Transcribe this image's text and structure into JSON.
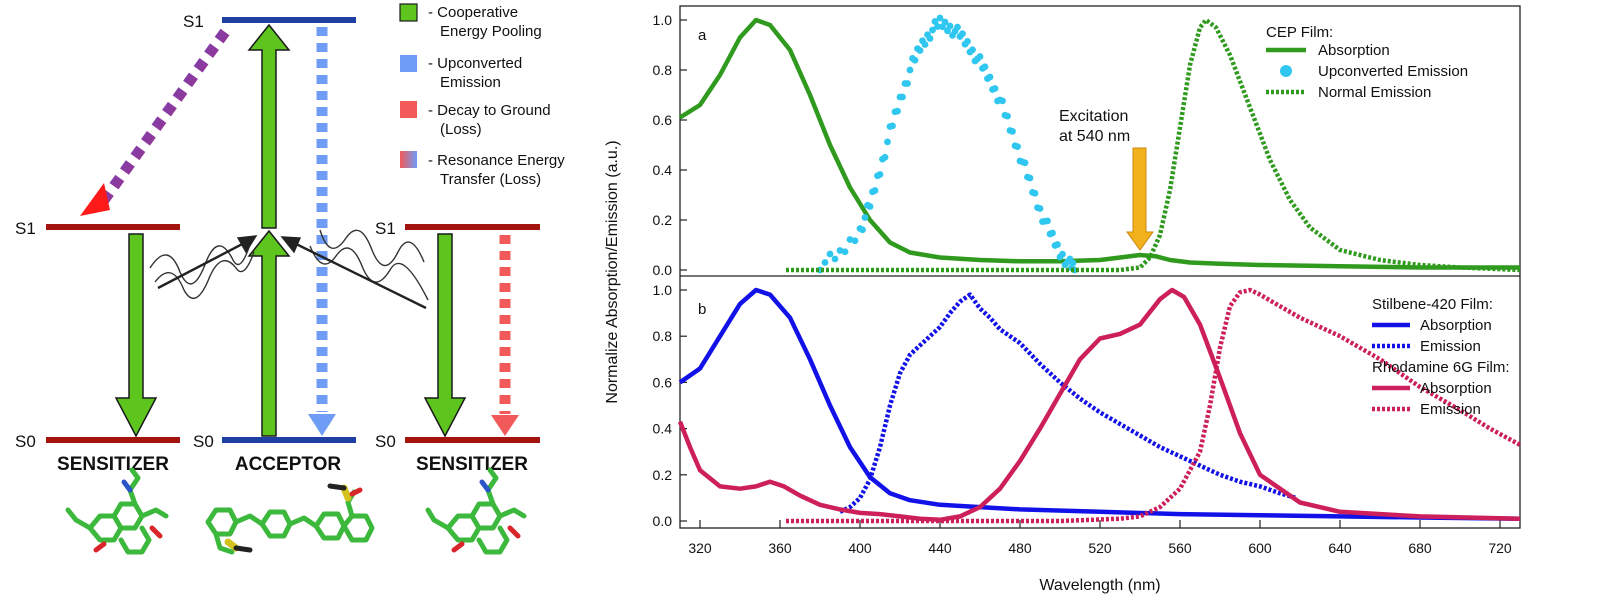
{
  "diagram": {
    "acceptor_levels": {
      "s1": "S1",
      "s0": "S0"
    },
    "left_sensitizer_levels": {
      "s1": "S1",
      "s0": "S0"
    },
    "right_sensitizer_levels": {
      "s1": "S1",
      "s0": "S0"
    },
    "left_sensitizer_label": "SENSITIZER",
    "acceptor_label": "ACCEPTOR",
    "right_sensitizer_label": "SENSITIZER",
    "colors": {
      "sensitizer_level": "#a3140f",
      "acceptor_level": "#1f3fa3",
      "pooling": "#5ec41e",
      "upconverted": "#6f9cf5",
      "decay": "#f25a5a",
      "molecule": "#3cb83c"
    },
    "legend": [
      {
        "line1": "- Cooperative",
        "line2": "Energy Pooling",
        "color": "#5ec41e"
      },
      {
        "line1": "- Upconverted",
        "line2": "Emission",
        "color": "#6f9cf5"
      },
      {
        "line1": "- Decay to Ground",
        "line2": "(Loss)",
        "color": "#f25a5a"
      },
      {
        "line1": "- Resonance Energy",
        "line2": "Transfer (Loss)",
        "color": "gradient"
      }
    ]
  },
  "chart_data": [
    {
      "type": "line",
      "panel_label": "a",
      "xlim": [
        310,
        730
      ],
      "ylim": [
        0,
        1.0
      ],
      "yticks": [
        "0.0",
        "0.2",
        "0.4",
        "0.6",
        "0.8",
        "1.0"
      ],
      "legend_title": "CEP Film:",
      "annotation": {
        "line1": "Excitation",
        "line2": "at 540 nm",
        "x": 540
      },
      "series": [
        {
          "name": "Absorption",
          "style": "solid",
          "color": "#2f9a1e",
          "x": [
            310,
            320,
            330,
            340,
            348,
            355,
            365,
            375,
            385,
            395,
            405,
            415,
            425,
            440,
            460,
            480,
            500,
            520,
            530,
            540,
            548,
            555,
            565,
            580,
            600,
            640,
            680,
            730
          ],
          "y": [
            0.61,
            0.66,
            0.78,
            0.93,
            1.0,
            0.98,
            0.88,
            0.7,
            0.5,
            0.33,
            0.2,
            0.11,
            0.07,
            0.05,
            0.04,
            0.035,
            0.035,
            0.04,
            0.05,
            0.06,
            0.055,
            0.04,
            0.03,
            0.025,
            0.02,
            0.015,
            0.01,
            0.01
          ]
        },
        {
          "name": "Upconverted Emission",
          "style": "dots",
          "color": "#2fc6ef",
          "x": [
            380,
            390,
            400,
            405,
            410,
            415,
            420,
            425,
            430,
            435,
            440,
            445,
            450,
            455,
            460,
            465,
            470,
            475,
            480,
            485,
            490,
            495,
            500,
            505,
            508
          ],
          "y": [
            0.02,
            0.06,
            0.16,
            0.26,
            0.4,
            0.55,
            0.68,
            0.8,
            0.89,
            0.95,
            0.99,
            0.97,
            0.94,
            0.89,
            0.83,
            0.76,
            0.68,
            0.57,
            0.46,
            0.35,
            0.24,
            0.15,
            0.07,
            0.02,
            0.0
          ]
        },
        {
          "name": "Normal Emission",
          "style": "dotted",
          "color": "#2f9a1e",
          "x": [
            363,
            400,
            450,
            500,
            530,
            540,
            545,
            550,
            555,
            560,
            565,
            570,
            573,
            578,
            585,
            595,
            605,
            615,
            625,
            640,
            660,
            680,
            700,
            730
          ],
          "y": [
            0.0,
            0.0,
            0.0,
            0.0,
            0.0,
            0.01,
            0.05,
            0.14,
            0.32,
            0.57,
            0.82,
            0.97,
            1.0,
            0.97,
            0.86,
            0.65,
            0.44,
            0.28,
            0.17,
            0.08,
            0.04,
            0.02,
            0.01,
            0.0
          ]
        }
      ]
    },
    {
      "type": "line",
      "panel_label": "b",
      "xlim": [
        310,
        730
      ],
      "ylim": [
        0,
        1.0
      ],
      "xticks": [
        "320",
        "360",
        "400",
        "440",
        "480",
        "520",
        "560",
        "600",
        "640",
        "680",
        "720"
      ],
      "yticks": [
        "0.0",
        "0.2",
        "0.4",
        "0.6",
        "0.8",
        "1.0"
      ],
      "xlabel": "Wavelength (nm)",
      "ylabel": "Normalize Absorption/Emission (a.u.)",
      "legend_groups": [
        {
          "title": "Stilbene-420 Film:",
          "entries": [
            {
              "name": "Absorption",
              "style": "solid"
            },
            {
              "name": "Emission",
              "style": "dotted"
            }
          ],
          "color": "#1212e8"
        },
        {
          "title": "Rhodamine 6G Film:",
          "entries": [
            {
              "name": "Absorption",
              "style": "solid"
            },
            {
              "name": "Emission",
              "style": "dotted"
            }
          ],
          "color": "#cc1f5b"
        }
      ],
      "series": [
        {
          "name": "Stilbene-420 Absorption",
          "style": "solid",
          "color": "#1212e8",
          "x": [
            310,
            320,
            330,
            340,
            348,
            355,
            365,
            375,
            385,
            395,
            405,
            415,
            425,
            440,
            460,
            480,
            520,
            560,
            600,
            640,
            680,
            730
          ],
          "y": [
            0.6,
            0.66,
            0.8,
            0.94,
            1.0,
            0.98,
            0.88,
            0.7,
            0.5,
            0.32,
            0.19,
            0.12,
            0.09,
            0.07,
            0.06,
            0.05,
            0.04,
            0.03,
            0.025,
            0.02,
            0.015,
            0.01
          ]
        },
        {
          "name": "Stilbene-420 Emission",
          "style": "dotted",
          "color": "#1212e8",
          "x": [
            390,
            395,
            400,
            405,
            410,
            415,
            420,
            425,
            430,
            435,
            440,
            445,
            450,
            455,
            460,
            465,
            470,
            480,
            490,
            500,
            510,
            520,
            530,
            540,
            550,
            560,
            570,
            580,
            590,
            600,
            610,
            618
          ],
          "y": [
            0.04,
            0.06,
            0.1,
            0.18,
            0.32,
            0.5,
            0.64,
            0.72,
            0.76,
            0.8,
            0.84,
            0.9,
            0.95,
            0.98,
            0.92,
            0.88,
            0.83,
            0.77,
            0.68,
            0.6,
            0.53,
            0.47,
            0.42,
            0.37,
            0.32,
            0.28,
            0.24,
            0.2,
            0.17,
            0.15,
            0.12,
            0.1
          ]
        },
        {
          "name": "Rhodamine 6G Absorption",
          "style": "solid",
          "color": "#cc1f5b",
          "x": [
            310,
            315,
            320,
            330,
            340,
            348,
            355,
            362,
            370,
            380,
            390,
            400,
            410,
            420,
            430,
            440,
            450,
            460,
            470,
            480,
            490,
            500,
            510,
            520,
            530,
            540,
            550,
            556,
            562,
            570,
            580,
            590,
            600,
            620,
            640,
            680,
            730
          ],
          "y": [
            0.43,
            0.32,
            0.22,
            0.15,
            0.14,
            0.15,
            0.17,
            0.15,
            0.11,
            0.07,
            0.05,
            0.035,
            0.03,
            0.02,
            0.01,
            0.005,
            0.02,
            0.06,
            0.14,
            0.26,
            0.4,
            0.55,
            0.7,
            0.79,
            0.81,
            0.85,
            0.96,
            1.0,
            0.97,
            0.85,
            0.62,
            0.38,
            0.2,
            0.08,
            0.04,
            0.02,
            0.01
          ]
        },
        {
          "name": "Rhodamine 6G Emission",
          "style": "dotted",
          "color": "#cc1f5b",
          "x": [
            363,
            400,
            450,
            500,
            530,
            540,
            550,
            560,
            570,
            575,
            580,
            585,
            590,
            595,
            600,
            610,
            620,
            640,
            660,
            680,
            700,
            715,
            730
          ],
          "y": [
            0.0,
            0.0,
            0.0,
            0.0,
            0.01,
            0.02,
            0.06,
            0.14,
            0.3,
            0.5,
            0.75,
            0.93,
            0.99,
            1.0,
            0.98,
            0.93,
            0.88,
            0.8,
            0.7,
            0.58,
            0.48,
            0.4,
            0.33
          ]
        }
      ]
    }
  ]
}
